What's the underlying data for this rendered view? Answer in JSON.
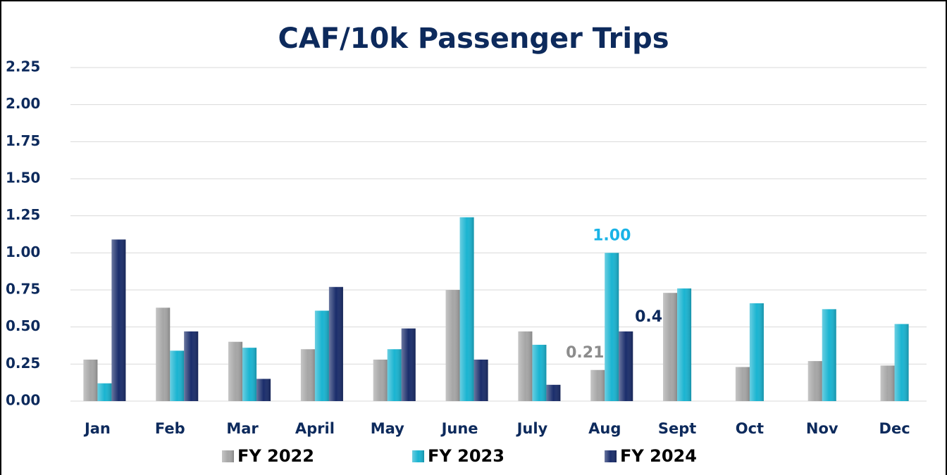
{
  "chart_data": {
    "type": "bar",
    "title": "CAF/10k Passenger Trips",
    "categories": [
      "Jan",
      "Feb",
      "Mar",
      "April",
      "May",
      "June",
      "July",
      "Aug",
      "Sept",
      "Oct",
      "Nov",
      "Dec"
    ],
    "series": [
      {
        "name": "FY 2022",
        "color": "#a6a6a6",
        "label_color": "#8c8c8c",
        "values": [
          0.28,
          0.63,
          0.4,
          0.35,
          0.28,
          0.75,
          0.47,
          0.21,
          0.73,
          0.23,
          0.27,
          0.24
        ],
        "value_labels": [
          null,
          null,
          null,
          null,
          null,
          null,
          null,
          "0.21",
          null,
          null,
          null,
          null
        ]
      },
      {
        "name": "FY 2023",
        "color": "#1ab4d1",
        "label_color": "#19b3e6",
        "values": [
          0.12,
          0.34,
          0.36,
          0.61,
          0.35,
          1.24,
          0.38,
          1.0,
          0.76,
          0.66,
          0.62,
          0.52
        ],
        "value_labels": [
          null,
          null,
          null,
          null,
          null,
          null,
          null,
          "1.00",
          null,
          null,
          null,
          null
        ]
      },
      {
        "name": "FY 2024",
        "color": "#1a2d6b",
        "label_color": "#0d2a5c",
        "values": [
          1.09,
          0.47,
          0.15,
          0.77,
          0.49,
          0.28,
          0.11,
          0.47,
          null,
          null,
          null,
          null
        ],
        "value_labels": [
          null,
          null,
          null,
          null,
          null,
          null,
          null,
          "0.47",
          null,
          null,
          null,
          null
        ]
      }
    ],
    "ylim": [
      0,
      2.25
    ],
    "yticks": [
      {
        "value": 0,
        "label": "0.00"
      },
      0.25,
      {
        "value": 0.5,
        "label": "0.50"
      },
      0.75,
      {
        "value": 1,
        "label": "1.00"
      },
      1.25,
      {
        "value": 1.5,
        "label": "1.50"
      },
      1.75,
      {
        "value": 2,
        "label": "2.00"
      },
      2.25
    ],
    "grid": true,
    "legend": "bottom"
  }
}
